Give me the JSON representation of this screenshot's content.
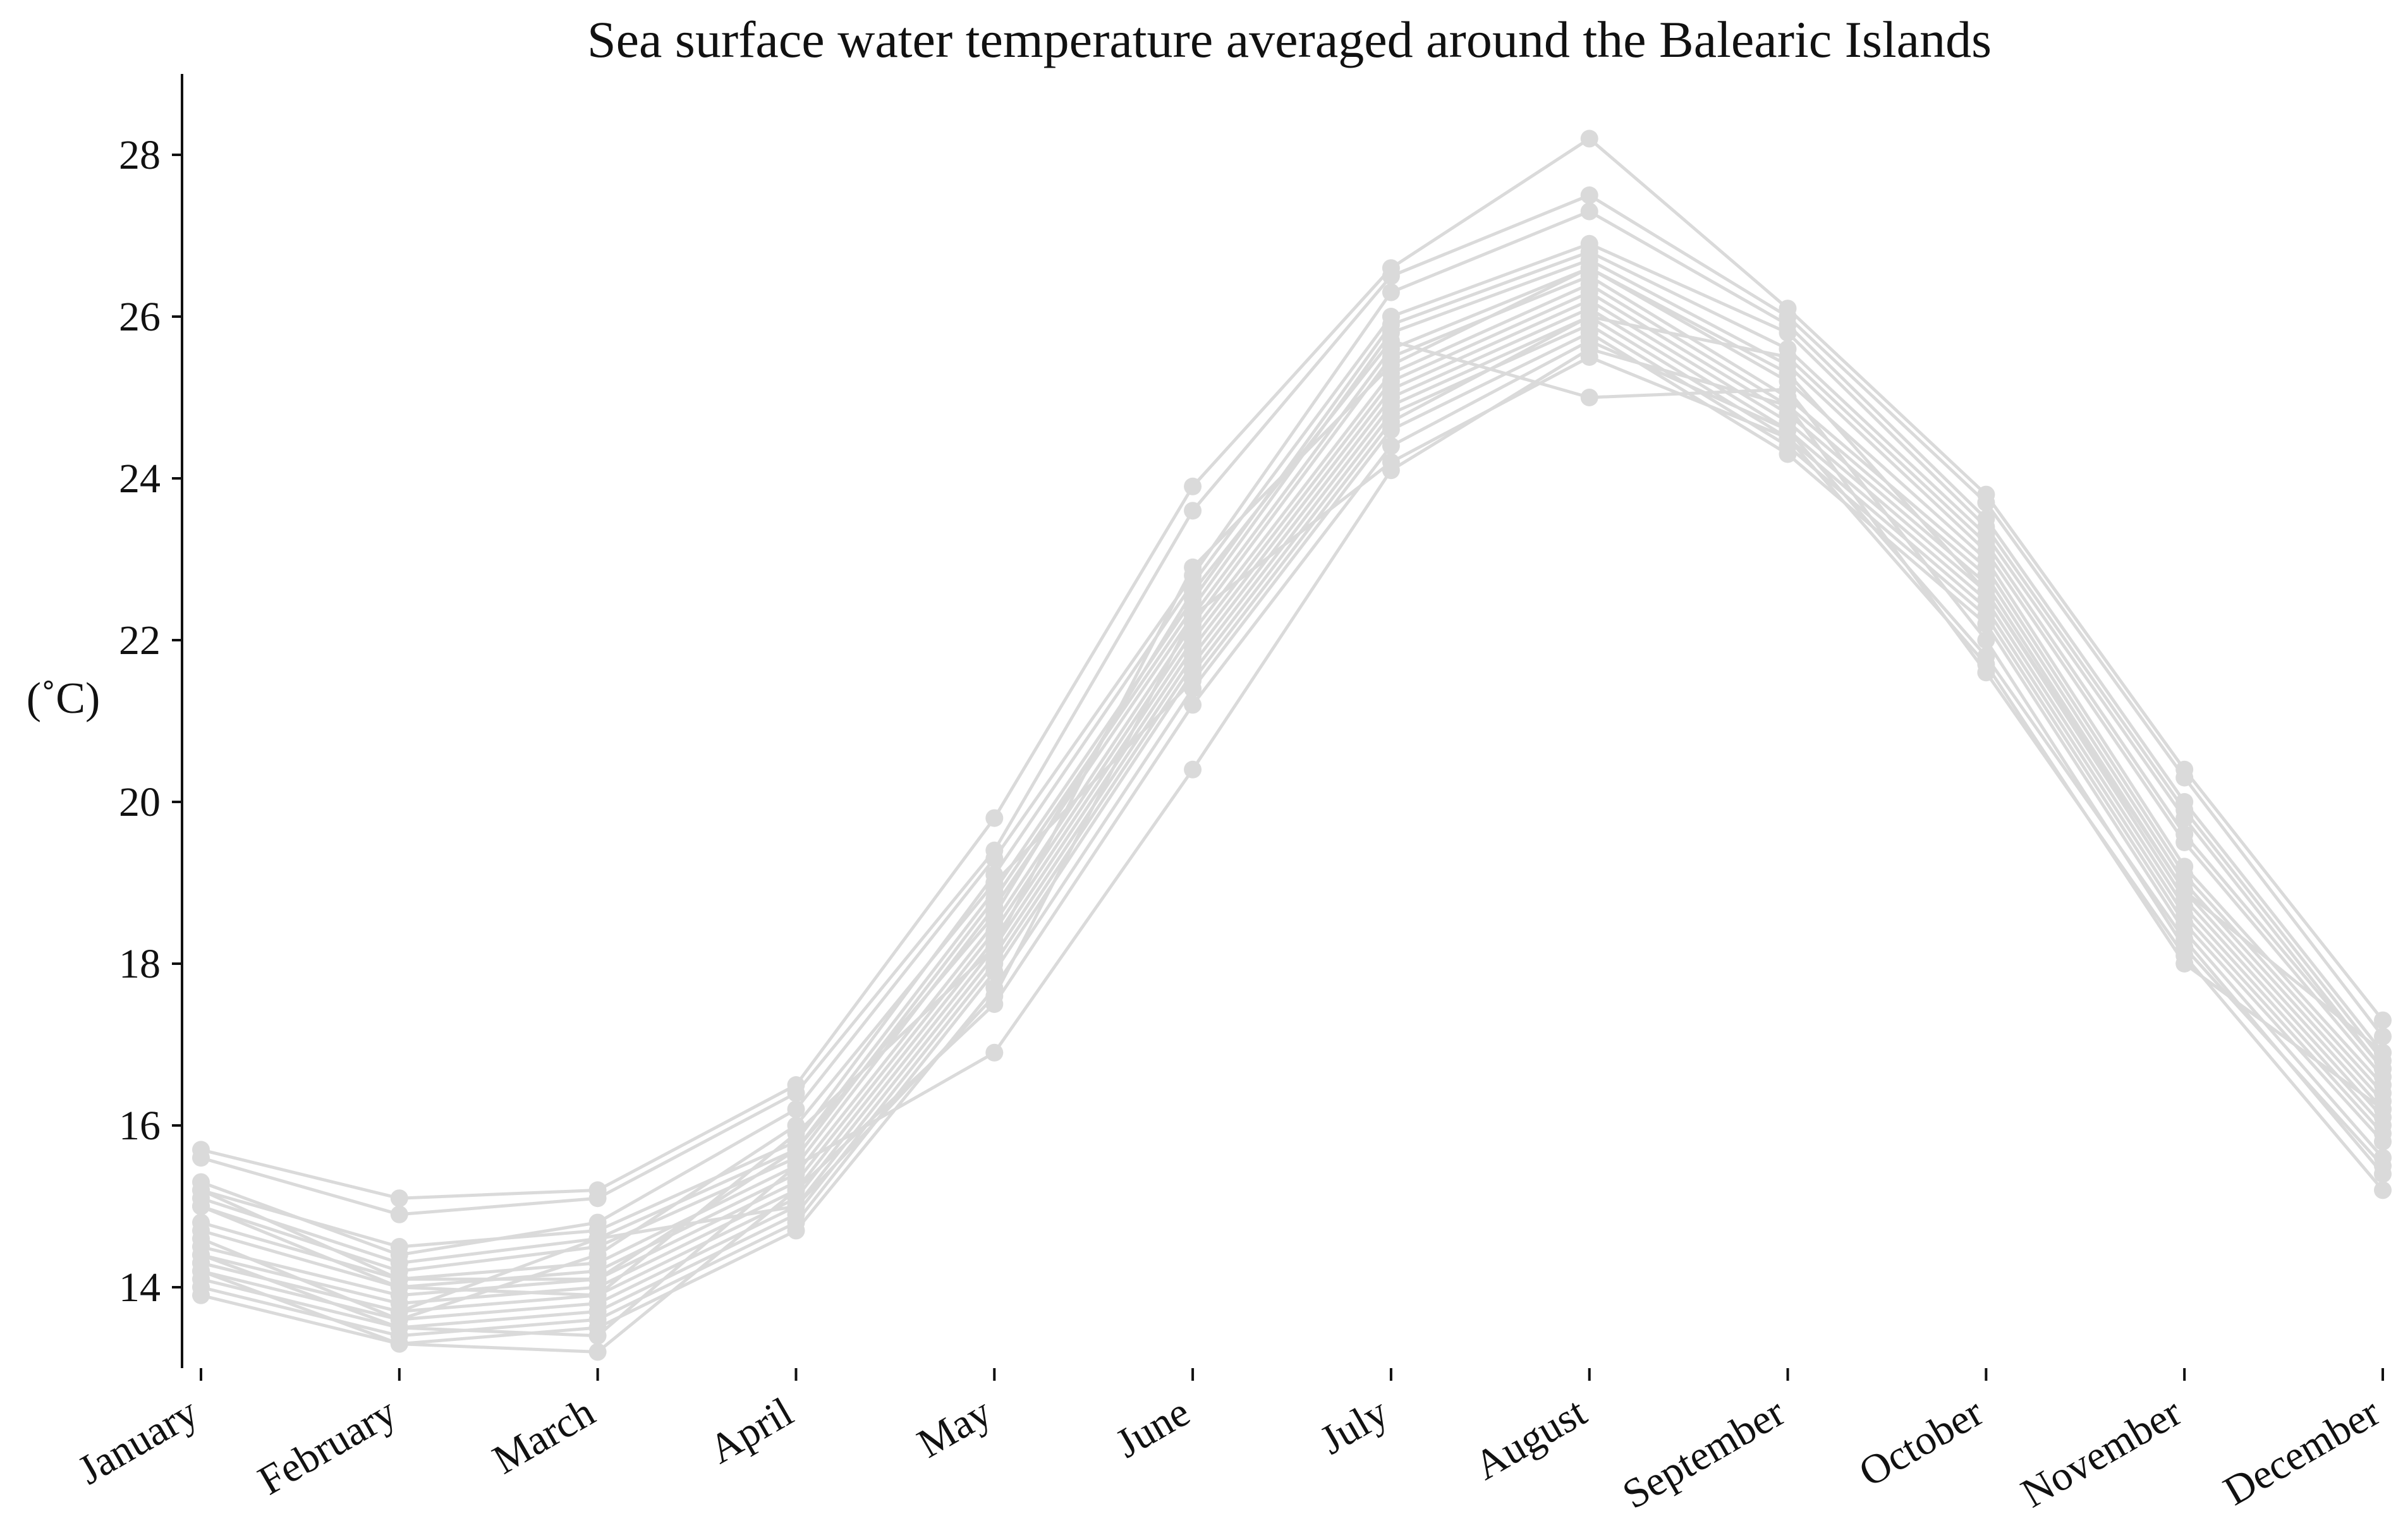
{
  "chart_data": {
    "type": "line",
    "title": "Sea surface water temperature averaged around the Balearic Islands",
    "xlabel": "",
    "ylabel": "(˚C)",
    "categories": [
      "January",
      "February",
      "March",
      "April",
      "May",
      "June",
      "July",
      "August",
      "September",
      "October",
      "November",
      "December"
    ],
    "yticks": [
      14,
      16,
      18,
      20,
      22,
      24,
      26,
      28
    ],
    "ylim": [
      13.0,
      29.0
    ],
    "grid": false,
    "legend": "none",
    "line_color": "#dadada",
    "series": [
      {
        "values": [
          15.7,
          15.1,
          15.2,
          16.5,
          19.8,
          23.9,
          26.6,
          28.2,
          26.1,
          23.8,
          20.4,
          17.3
        ]
      },
      {
        "values": [
          15.6,
          14.9,
          15.1,
          16.4,
          19.4,
          23.6,
          26.5,
          27.5,
          26.0,
          23.7,
          20.3,
          17.1
        ]
      },
      {
        "values": [
          15.3,
          14.4,
          14.8,
          16.2,
          19.3,
          22.8,
          26.3,
          27.3,
          25.9,
          23.5,
          20.0,
          16.9
        ]
      },
      {
        "values": [
          15.2,
          14.5,
          14.7,
          15.8,
          19.1,
          22.7,
          26.0,
          26.9,
          25.8,
          23.4,
          19.9,
          16.8
        ]
      },
      {
        "values": [
          15.1,
          14.3,
          14.6,
          15.7,
          18.9,
          22.5,
          25.9,
          26.8,
          25.6,
          23.3,
          19.8,
          16.7
        ]
      },
      {
        "values": [
          15.0,
          14.2,
          14.5,
          15.6,
          18.8,
          22.4,
          25.8,
          26.7,
          25.4,
          23.1,
          19.5,
          16.6
        ]
      },
      {
        "values": [
          14.8,
          14.1,
          14.3,
          15.5,
          18.7,
          22.3,
          25.6,
          26.6,
          25.2,
          23.0,
          19.2,
          16.5
        ]
      },
      {
        "values": [
          14.7,
          14.0,
          14.2,
          15.4,
          18.5,
          22.2,
          25.5,
          26.5,
          25.0,
          22.9,
          19.1,
          16.4
        ]
      },
      {
        "values": [
          14.5,
          13.9,
          14.1,
          15.3,
          18.4,
          22.1,
          25.3,
          26.4,
          24.9,
          22.8,
          19.0,
          16.3
        ]
      },
      {
        "values": [
          14.4,
          13.8,
          14.0,
          15.2,
          18.3,
          22.0,
          25.2,
          26.3,
          24.8,
          22.7,
          18.9,
          16.2
        ]
      },
      {
        "values": [
          14.3,
          13.7,
          13.9,
          15.1,
          18.2,
          21.9,
          25.1,
          26.2,
          24.7,
          22.6,
          18.8,
          16.1
        ]
      },
      {
        "values": [
          14.2,
          13.6,
          13.8,
          15.0,
          18.1,
          21.8,
          25.0,
          26.1,
          24.6,
          22.5,
          18.7,
          16.0
        ]
      },
      {
        "values": [
          14.1,
          13.5,
          13.7,
          14.9,
          18.0,
          21.7,
          24.9,
          26.0,
          24.5,
          22.4,
          18.6,
          15.9
        ]
      },
      {
        "values": [
          14.0,
          13.4,
          13.6,
          14.8,
          17.9,
          21.6,
          24.8,
          25.9,
          24.4,
          22.3,
          18.5,
          15.8
        ]
      },
      {
        "values": [
          13.9,
          13.3,
          13.5,
          14.7,
          17.7,
          21.4,
          24.6,
          25.8,
          24.3,
          22.2,
          18.4,
          15.6
        ]
      },
      {
        "values": [
          14.2,
          13.3,
          13.2,
          15.2,
          17.5,
          21.2,
          24.4,
          25.7,
          24.6,
          21.8,
          18.3,
          15.4
        ]
      },
      {
        "values": [
          14.4,
          13.5,
          13.4,
          15.5,
          16.9,
          20.4,
          24.1,
          25.6,
          24.9,
          21.6,
          18.1,
          15.2
        ]
      },
      {
        "values": [
          15.2,
          14.1,
          14.1,
          15.7,
          18.6,
          22.6,
          25.7,
          25.0,
          25.1,
          22.0,
          18.2,
          15.5
        ]
      },
      {
        "values": [
          14.6,
          13.6,
          14.4,
          16.0,
          19.0,
          21.5,
          24.7,
          26.0,
          25.5,
          23.2,
          19.6,
          16.7
        ]
      },
      {
        "values": [
          15.0,
          14.0,
          13.9,
          15.9,
          18.2,
          22.9,
          25.4,
          26.6,
          25.3,
          22.6,
          18.9,
          16.9
        ]
      },
      {
        "values": [
          14.3,
          13.7,
          14.6,
          15.0,
          17.6,
          22.3,
          24.2,
          25.5,
          24.5,
          21.7,
          18.0,
          16.2
        ]
      }
    ]
  }
}
